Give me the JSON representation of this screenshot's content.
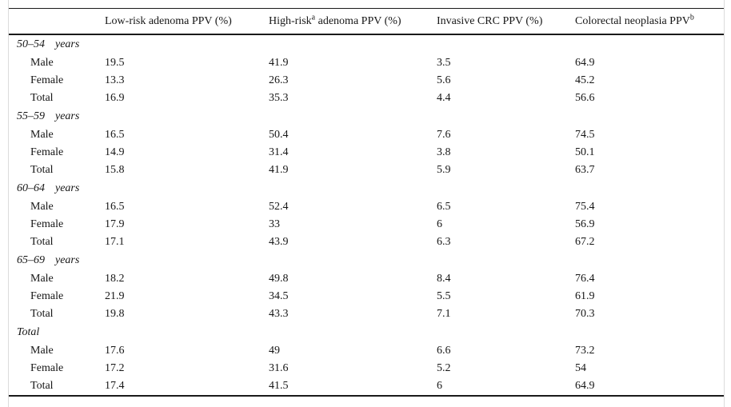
{
  "page": {
    "background": "#ffffff",
    "rule_color": "#1a1a1a",
    "frame_line_color": "#dcdcdc"
  },
  "table": {
    "headers": [
      {
        "text": "",
        "sup": "",
        "rest": ""
      },
      {
        "text": "Low-risk adenoma PPV (%)",
        "sup": "",
        "rest": ""
      },
      {
        "text": "High-risk",
        "sup": "a",
        "rest": " adenoma PPV (%)"
      },
      {
        "text": "Invasive CRC PPV (%)",
        "sup": "",
        "rest": ""
      },
      {
        "text": "Colorectal neoplasia PPV",
        "sup": "b",
        "rest": ""
      }
    ],
    "groups": [
      {
        "range": "50–54",
        "unit": "years",
        "rows": [
          {
            "label": "Male",
            "values": [
              "19.5",
              "41.9",
              "3.5",
              "64.9"
            ]
          },
          {
            "label": "Female",
            "values": [
              "13.3",
              "26.3",
              "5.6",
              "45.2"
            ]
          },
          {
            "label": "Total",
            "values": [
              "16.9",
              "35.3",
              "4.4",
              "56.6"
            ]
          }
        ]
      },
      {
        "range": "55–59",
        "unit": "years",
        "rows": [
          {
            "label": "Male",
            "values": [
              "16.5",
              "50.4",
              "7.6",
              "74.5"
            ]
          },
          {
            "label": "Female",
            "values": [
              "14.9",
              "31.4",
              "3.8",
              "50.1"
            ]
          },
          {
            "label": "Total",
            "values": [
              "15.8",
              "41.9",
              "5.9",
              "63.7"
            ]
          }
        ]
      },
      {
        "range": "60–64",
        "unit": "years",
        "rows": [
          {
            "label": "Male",
            "values": [
              "16.5",
              "52.4",
              "6.5",
              "75.4"
            ]
          },
          {
            "label": "Female",
            "values": [
              "17.9",
              "33",
              "6",
              "56.9"
            ]
          },
          {
            "label": "Total",
            "values": [
              "17.1",
              "43.9",
              "6.3",
              "67.2"
            ]
          }
        ]
      },
      {
        "range": "65–69",
        "unit": "years",
        "rows": [
          {
            "label": "Male",
            "values": [
              "18.2",
              "49.8",
              "8.4",
              "76.4"
            ]
          },
          {
            "label": "Female",
            "values": [
              "21.9",
              "34.5",
              "5.5",
              "61.9"
            ]
          },
          {
            "label": "Total",
            "values": [
              "19.8",
              "43.3",
              "7.1",
              "70.3"
            ]
          }
        ]
      },
      {
        "range": "Total",
        "unit": "",
        "rows": [
          {
            "label": "Male",
            "values": [
              "17.6",
              "49",
              "6.6",
              "73.2"
            ]
          },
          {
            "label": "Female",
            "values": [
              "17.2",
              "31.6",
              "5.2",
              "54"
            ]
          },
          {
            "label": "Total",
            "values": [
              "17.4",
              "41.5",
              "6",
              "64.9"
            ]
          }
        ]
      }
    ]
  },
  "chart_data": {
    "type": "table",
    "columns": [
      "",
      "Low-risk adenoma PPV (%)",
      "High-risk^a adenoma PPV (%)",
      "Invasive CRC PPV (%)",
      "Colorectal neoplasia PPV^b"
    ],
    "rows": [
      [
        "50–54 years",
        "",
        "",
        "",
        ""
      ],
      [
        "Male",
        "19.5",
        "41.9",
        "3.5",
        "64.9"
      ],
      [
        "Female",
        "13.3",
        "26.3",
        "5.6",
        "45.2"
      ],
      [
        "Total",
        "16.9",
        "35.3",
        "4.4",
        "56.6"
      ],
      [
        "55–59 years",
        "",
        "",
        "",
        ""
      ],
      [
        "Male",
        "16.5",
        "50.4",
        "7.6",
        "74.5"
      ],
      [
        "Female",
        "14.9",
        "31.4",
        "3.8",
        "50.1"
      ],
      [
        "Total",
        "15.8",
        "41.9",
        "5.9",
        "63.7"
      ],
      [
        "60–64 years",
        "",
        "",
        "",
        ""
      ],
      [
        "Male",
        "16.5",
        "52.4",
        "6.5",
        "75.4"
      ],
      [
        "Female",
        "17.9",
        "33",
        "6",
        "56.9"
      ],
      [
        "Total",
        "17.1",
        "43.9",
        "6.3",
        "67.2"
      ],
      [
        "65–69 years",
        "",
        "",
        "",
        ""
      ],
      [
        "Male",
        "18.2",
        "49.8",
        "8.4",
        "76.4"
      ],
      [
        "Female",
        "21.9",
        "34.5",
        "5.5",
        "61.9"
      ],
      [
        "Total",
        "19.8",
        "43.3",
        "7.1",
        "70.3"
      ],
      [
        "Total",
        "",
        "",
        "",
        ""
      ],
      [
        "Male",
        "17.6",
        "49",
        "6.6",
        "73.2"
      ],
      [
        "Female",
        "17.2",
        "31.6",
        "5.2",
        "54"
      ],
      [
        "Total",
        "17.4",
        "41.5",
        "6",
        "64.9"
      ]
    ]
  }
}
